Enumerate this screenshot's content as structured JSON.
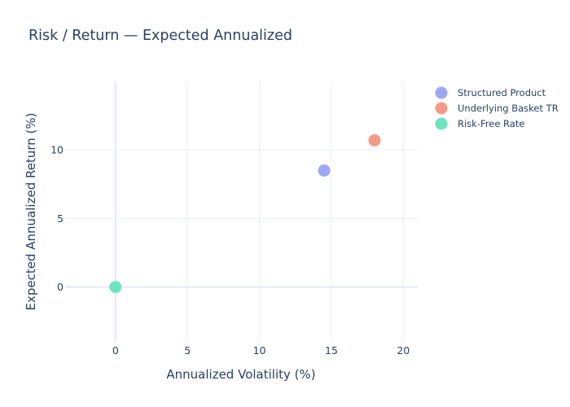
{
  "chart_data": {
    "type": "scatter",
    "title": "Risk / Return — Expected Annualized",
    "xlabel": "Annualized Volatility (%)",
    "ylabel": "Expected Annualized Return (%)",
    "xlim": [
      -3.5,
      21
    ],
    "ylim": [
      -4,
      15
    ],
    "xticks": [
      0,
      5,
      10,
      15,
      20
    ],
    "yticks": [
      0,
      5,
      10
    ],
    "grid": true,
    "legend_position": "top-right",
    "series": [
      {
        "name": "Structured Product",
        "color": "#9ea6f8",
        "points": [
          {
            "x": 14.5,
            "y": 8.5
          }
        ]
      },
      {
        "name": "Underlying Basket TR",
        "color": "#f4998a",
        "points": [
          {
            "x": 18.0,
            "y": 10.7
          }
        ]
      },
      {
        "name": "Risk-Free Rate",
        "color": "#6ee3c0",
        "points": [
          {
            "x": 0.0,
            "y": 0.0
          }
        ]
      }
    ]
  }
}
